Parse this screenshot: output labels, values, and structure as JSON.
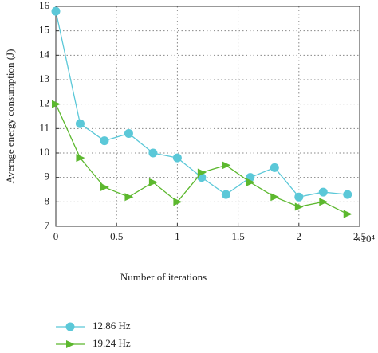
{
  "chart_data": {
    "type": "line",
    "x_label": "Number of iterations",
    "y_label": "Average energy consumption (J)",
    "x_multiplier": "×10⁴",
    "x": [
      0,
      0.2,
      0.4,
      0.6,
      0.8,
      1.0,
      1.2,
      1.4,
      1.6,
      1.8,
      2.0,
      2.2,
      2.4
    ],
    "series": [
      {
        "name": "12.86 Hz",
        "color": "#5bc8d8",
        "marker": "circle",
        "values": [
          15.8,
          11.2,
          10.5,
          10.8,
          10.0,
          9.8,
          9.0,
          8.3,
          9.0,
          9.4,
          8.2,
          8.4,
          8.3
        ]
      },
      {
        "name": "19.24 Hz",
        "color": "#5cb82e",
        "marker": "triangle-right",
        "values": [
          12.0,
          9.8,
          8.6,
          8.2,
          8.8,
          8.0,
          9.2,
          9.5,
          8.8,
          8.2,
          7.8,
          8.0,
          7.5
        ]
      }
    ],
    "xlim": [
      0,
      2.5
    ],
    "xticks": [
      0,
      0.5,
      1,
      1.5,
      2,
      2.5
    ],
    "ylim": [
      7,
      16
    ],
    "yticks": [
      7,
      8,
      9,
      10,
      11,
      12,
      13,
      14,
      15,
      16
    ],
    "grid": true
  }
}
